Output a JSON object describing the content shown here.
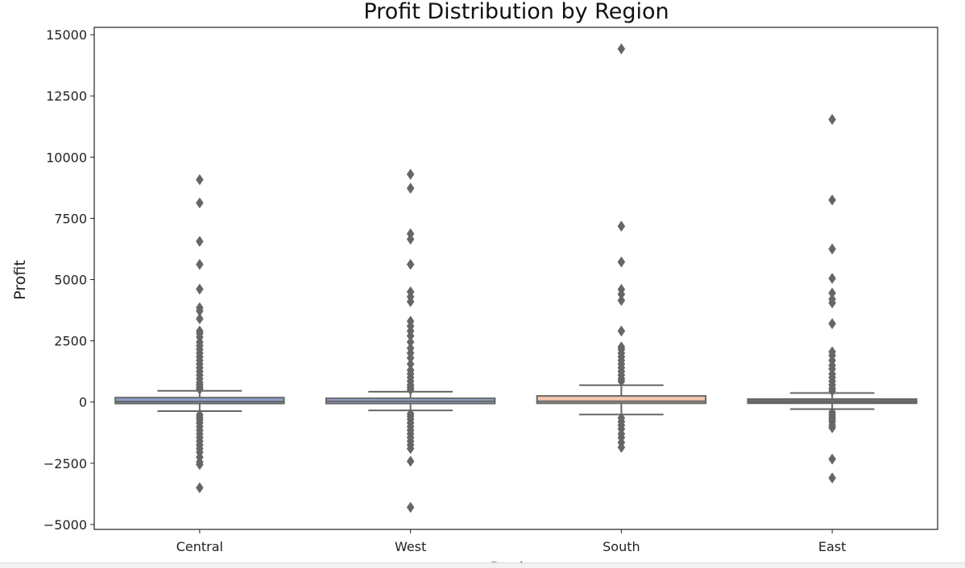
{
  "chart_data": {
    "type": "box",
    "title": "Profit Distribution by Region",
    "xlabel": "Region",
    "ylabel": "Profit",
    "categories": [
      "Central",
      "West",
      "South",
      "East"
    ],
    "ylim": [
      -5200,
      15300
    ],
    "yticks": [
      -5000,
      -2500,
      0,
      2500,
      5000,
      7500,
      10000,
      12500,
      15000
    ],
    "ytick_labels": [
      "−5000",
      "−2500",
      "0",
      "2500",
      "5000",
      "7500",
      "10000",
      "12500",
      "15000"
    ],
    "grid": false,
    "boxes": [
      {
        "name": "Central",
        "color": "#8ea0cf",
        "q1": -60,
        "median": 20,
        "q3": 180,
        "whisker_low": -370,
        "whisker_high": 460,
        "outliers": [
          9080,
          8130,
          6560,
          5620,
          4610,
          3850,
          3720,
          3400,
          2900,
          2800,
          2650,
          2450,
          2300,
          2150,
          2000,
          1850,
          1700,
          1550,
          1400,
          1250,
          1100,
          950,
          800,
          700,
          600,
          520,
          -520,
          -620,
          -720,
          -850,
          -1000,
          -1150,
          -1300,
          -1450,
          -1600,
          -1750,
          -1900,
          -2050,
          -2250,
          -2450,
          -2550,
          -3500
        ]
      },
      {
        "name": "West",
        "color": "#9aaad4",
        "q1": -60,
        "median": 30,
        "q3": 150,
        "whisker_low": -340,
        "whisker_high": 420,
        "outliers": [
          9300,
          8730,
          6870,
          6650,
          5620,
          4500,
          4300,
          4100,
          3300,
          3100,
          2900,
          2700,
          2450,
          2200,
          2000,
          1800,
          1550,
          1300,
          1150,
          1000,
          850,
          700,
          600,
          500,
          -480,
          -580,
          -700,
          -850,
          -1000,
          -1150,
          -1300,
          -1450,
          -1600,
          -1750,
          -1900,
          -2420,
          -4300
        ]
      },
      {
        "name": "South",
        "color": "#f0c8ad",
        "q1": -50,
        "median": 30,
        "q3": 250,
        "whisker_low": -510,
        "whisker_high": 690,
        "outliers": [
          14420,
          7180,
          5720,
          4600,
          4400,
          4150,
          2900,
          2250,
          2150,
          2000,
          1850,
          1700,
          1550,
          1400,
          1250,
          1100,
          950,
          850,
          -650,
          -800,
          -950,
          -1100,
          -1300,
          -1450,
          -1650,
          -1850
        ]
      },
      {
        "name": "East",
        "color": "#707070",
        "q1": -50,
        "median": 20,
        "q3": 120,
        "whisker_low": -290,
        "whisker_high": 370,
        "outliers": [
          11540,
          8250,
          6250,
          5050,
          4450,
          4200,
          4050,
          3200,
          2050,
          1900,
          1700,
          1500,
          1350,
          1150,
          1000,
          850,
          700,
          560,
          450,
          -420,
          -520,
          -620,
          -720,
          -820,
          -950,
          -1050,
          -2330,
          -3100
        ]
      }
    ]
  }
}
